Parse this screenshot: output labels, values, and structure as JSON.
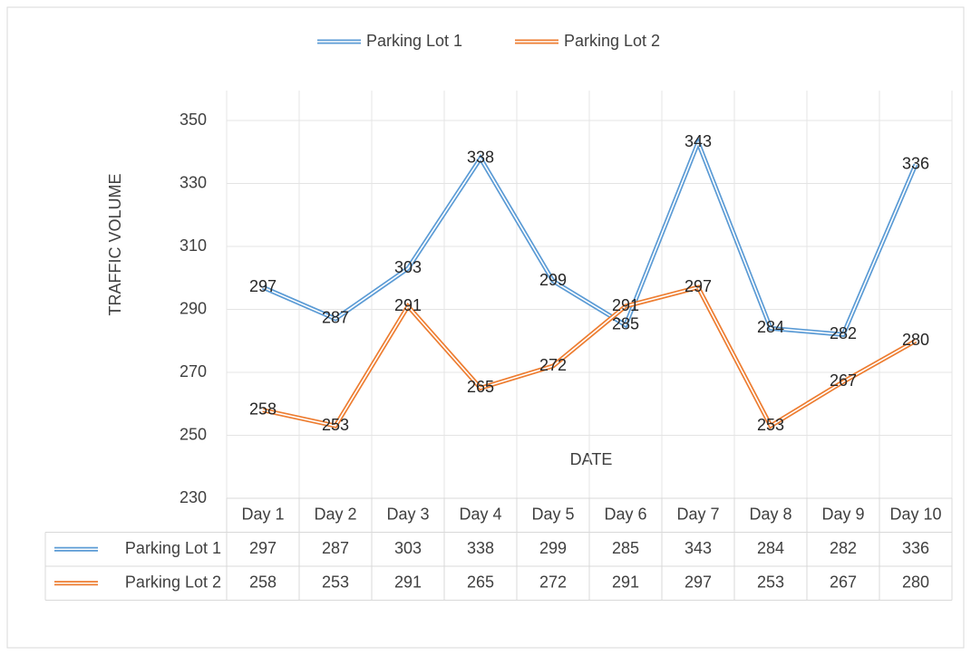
{
  "chart_data": {
    "type": "line",
    "categories": [
      "Day 1",
      "Day 2",
      "Day 3",
      "Day 4",
      "Day 5",
      "Day 6",
      "Day 7",
      "Day 8",
      "Day 9",
      "Day 10"
    ],
    "series": [
      {
        "name": "Parking Lot 1",
        "color": "#5b9bd5",
        "values": [
          297,
          287,
          303,
          338,
          299,
          285,
          343,
          284,
          282,
          336
        ]
      },
      {
        "name": "Parking Lot 2",
        "color": "#ed7d31",
        "values": [
          258,
          253,
          291,
          265,
          272,
          291,
          297,
          253,
          267,
          280
        ]
      }
    ],
    "y_axis_label": "TRAFFIC VOLUME",
    "x_axis_label": "DATE",
    "ylim": [
      230,
      350
    ],
    "yticks": [
      230,
      250,
      270,
      290,
      310,
      330,
      350
    ],
    "grid": true,
    "legend": "top",
    "data_table": true
  }
}
